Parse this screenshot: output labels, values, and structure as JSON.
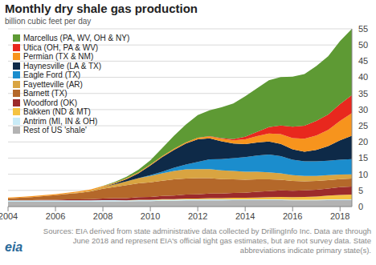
{
  "chart_data": {
    "type": "area",
    "title": "Monthly dry shale gas production",
    "subtitle": "billion cubic feet per day",
    "source": "Sources: EIA derived from state administrative data collected by DrillingInfo Inc. Data are through June 2018 and represent EIA's official tight gas estimates, but are not survey data. State abbreviations indicate primary state(s).",
    "logo": "eia",
    "stacked": true,
    "grid": true,
    "legend": "top left",
    "x": [
      2004,
      2004.5,
      2005,
      2005.5,
      2006,
      2006.5,
      2007,
      2007.5,
      2008,
      2008.5,
      2009,
      2009.5,
      2010,
      2010.5,
      2011,
      2011.5,
      2012,
      2012.5,
      2013,
      2013.5,
      2014,
      2014.5,
      2015,
      2015.5,
      2016,
      2016.5,
      2017,
      2017.5,
      2018,
      2018.5
    ],
    "xlim": [
      2004,
      2018.5
    ],
    "xticks": [
      2004,
      2006,
      2008,
      2010,
      2012,
      2014,
      2016,
      2018
    ],
    "ylim": [
      0,
      55
    ],
    "yticks": [
      0,
      5,
      10,
      15,
      20,
      25,
      30,
      35,
      40,
      45,
      50,
      55
    ],
    "series": [
      {
        "name": "Marcellus (PA, WV, OH & NY)",
        "color": "#5e9a34",
        "values": [
          0,
          0,
          0,
          0,
          0,
          0,
          0,
          0,
          0.1,
          0.2,
          0.4,
          0.8,
          1.3,
          2.5,
          4,
          5.5,
          7,
          8,
          9.5,
          11,
          12.5,
          13.5,
          14.5,
          15,
          15.5,
          16,
          17,
          18,
          19.5,
          20.5
        ]
      },
      {
        "name": "Utica (OH, PA & WV)",
        "color": "#e8281e",
        "values": [
          0,
          0,
          0,
          0,
          0,
          0,
          0,
          0,
          0,
          0,
          0,
          0,
          0,
          0,
          0,
          0,
          0,
          0.1,
          0.2,
          0.4,
          0.8,
          1.3,
          2,
          2.7,
          3.5,
          4,
          4.5,
          4.8,
          5.2,
          5.6
        ]
      },
      {
        "name": "Permian (TX & NM)",
        "color": "#f7941d",
        "values": [
          0.3,
          0.3,
          0.3,
          0.3,
          0.3,
          0.3,
          0.3,
          0.3,
          0.3,
          0.3,
          0.3,
          0.3,
          0.3,
          0.3,
          0.4,
          0.4,
          0.5,
          0.6,
          0.8,
          1,
          1.5,
          2,
          2.5,
          3,
          3.5,
          4,
          4.5,
          5,
          6,
          7
        ]
      },
      {
        "name": "Haynesville (LA & TX)",
        "color": "#0e2a48",
        "values": [
          0,
          0,
          0,
          0,
          0,
          0,
          0,
          0,
          0,
          0.2,
          0.7,
          1.5,
          3,
          4.5,
          5.5,
          6.5,
          7,
          6.5,
          5.5,
          4.5,
          4,
          4,
          4,
          3.8,
          3.2,
          3,
          3.5,
          4.5,
          6,
          7.2
        ]
      },
      {
        "name": "Eagle Ford (TX)",
        "color": "#1b8dcd",
        "values": [
          0,
          0,
          0,
          0,
          0,
          0,
          0,
          0,
          0,
          0,
          0,
          0,
          0.2,
          0.5,
          1,
          1.5,
          2.2,
          3,
          3.5,
          4,
          4.5,
          5,
          5.5,
          5.3,
          4.8,
          4.5,
          4.5,
          4.5,
          4.6,
          4.7
        ]
      },
      {
        "name": "Fayetteville (AR)",
        "color": "#d9a441",
        "values": [
          0,
          0,
          0,
          0,
          0.05,
          0.1,
          0.2,
          0.3,
          0.5,
          0.8,
          1.2,
          1.6,
          2,
          2.3,
          2.6,
          2.8,
          2.8,
          2.8,
          2.7,
          2.6,
          2.5,
          2.4,
          2.2,
          2,
          1.8,
          1.7,
          1.6,
          1.5,
          1.4,
          1.3
        ]
      },
      {
        "name": "Barnett (TX)",
        "color": "#b4682a",
        "values": [
          0.5,
          0.7,
          0.9,
          1.1,
          1.4,
          1.7,
          2,
          2.4,
          3,
          3.5,
          4,
          4.3,
          4.5,
          4.7,
          5,
          5,
          5,
          4.8,
          4.5,
          4.2,
          4,
          3.8,
          3.6,
          3.3,
          3,
          2.8,
          2.7,
          2.6,
          2.5,
          2.5
        ]
      },
      {
        "name": "Woodford (OK)",
        "color": "#9c2b2b",
        "values": [
          0.1,
          0.1,
          0.1,
          0.2,
          0.2,
          0.3,
          0.3,
          0.4,
          0.5,
          0.6,
          0.7,
          0.8,
          0.9,
          1,
          1.1,
          1.2,
          1.3,
          1.4,
          1.4,
          1.5,
          1.6,
          1.8,
          1.9,
          2,
          2,
          2,
          2.1,
          2.2,
          2.4,
          2.5
        ]
      },
      {
        "name": "Bakken (ND & MT)",
        "color": "#f5c342",
        "values": [
          0,
          0,
          0,
          0,
          0,
          0,
          0,
          0,
          0,
          0,
          0,
          0.1,
          0.1,
          0.2,
          0.2,
          0.3,
          0.3,
          0.4,
          0.4,
          0.5,
          0.5,
          0.6,
          0.7,
          0.8,
          0.8,
          0.9,
          1,
          1.2,
          1.4,
          1.5
        ]
      },
      {
        "name": "Antrim (MI, IN & OH)",
        "color": "#c9ebf7",
        "values": [
          0.4,
          0.4,
          0.4,
          0.4,
          0.4,
          0.4,
          0.4,
          0.4,
          0.4,
          0.4,
          0.3,
          0.3,
          0.3,
          0.3,
          0.3,
          0.3,
          0.3,
          0.3,
          0.3,
          0.2,
          0.2,
          0.2,
          0.2,
          0.2,
          0.2,
          0.2,
          0.2,
          0.2,
          0.2,
          0.2
        ]
      },
      {
        "name": "Rest of US 'shale'",
        "color": "#b3b3b3",
        "values": [
          1.5,
          1.5,
          1.5,
          1.5,
          1.5,
          1.5,
          1.5,
          1.5,
          1.6,
          1.6,
          1.6,
          1.7,
          1.7,
          1.8,
          1.8,
          1.9,
          1.9,
          1.9,
          1.9,
          2,
          2,
          2,
          2,
          2,
          1.9,
          1.9,
          1.9,
          2,
          2,
          2
        ]
      }
    ]
  }
}
